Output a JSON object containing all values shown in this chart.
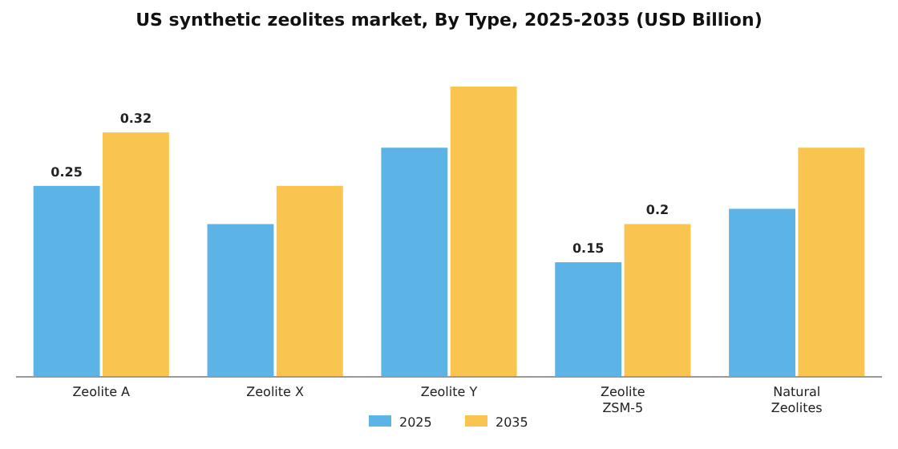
{
  "chart_data": {
    "type": "bar",
    "title": "US synthetic zeolites market, By Type, 2025-2035 (USD Billion)",
    "categories": [
      "Zeolite A",
      "Zeolite X",
      "Zeolite Y",
      "Zeolite ZSM-5",
      "Natural Zeolites"
    ],
    "series": [
      {
        "name": "2025",
        "color": "#5cb3e6",
        "values": [
          0.25,
          0.2,
          0.3,
          0.15,
          0.22
        ],
        "value_labels": [
          "0.25",
          null,
          null,
          "0.15",
          null
        ]
      },
      {
        "name": "2035",
        "color": "#f9c54e",
        "values": [
          0.32,
          0.25,
          0.38,
          0.2,
          0.3
        ],
        "value_labels": [
          "0.32",
          null,
          null,
          "0.2",
          null
        ]
      }
    ],
    "legend": "bottom",
    "grid": false
  }
}
